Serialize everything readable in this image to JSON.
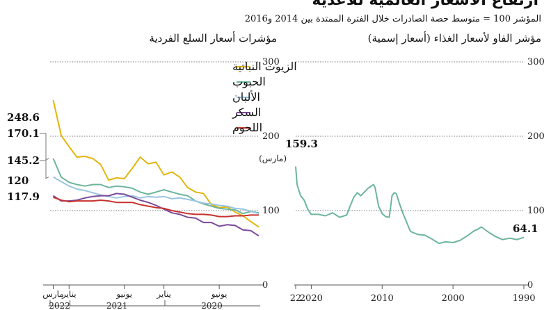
{
  "title": "ارتفاع الأسعار العالمية للأغذية",
  "subtitle": "المؤشر 100 = متوسط حصة الصادرات خلال الفترة الممتدة بين 2014 و2016",
  "chart_data": [
    {
      "type": "line",
      "title": "مؤشر الفاو لأسعار الغذاء (أسعار إسمية)",
      "ylim": [
        0,
        300
      ],
      "yticks": [
        "0",
        "100",
        "200",
        "300"
      ],
      "xlim": [
        1990,
        2022.2
      ],
      "xticks": [
        "1990",
        "2000",
        "2010",
        "2020",
        "22"
      ],
      "x": [
        1990.0,
        1991.0,
        1992.0,
        1993.0,
        1994.0,
        1995.0,
        1996.0,
        1996.5,
        1997.0,
        1998.0,
        1999.0,
        2000.0,
        2001.0,
        2002.0,
        2003.0,
        2004.0,
        2005.0,
        2006.0,
        2007.0,
        2007.5,
        2008.0,
        2008.3,
        2008.6,
        2009.0,
        2009.5,
        2010.0,
        2010.5,
        2011.0,
        2011.2,
        2012.0,
        2012.6,
        2013.0,
        2013.5,
        2014.0,
        2014.6,
        2015.0,
        2016.0,
        2017.0,
        2018.0,
        2019.0,
        2020.0,
        2020.5,
        2021.0,
        2021.5,
        2022.0,
        2022.2
      ],
      "values": [
        64,
        61,
        63,
        61,
        65,
        71,
        78,
        75,
        73,
        66,
        60,
        57,
        58,
        56,
        62,
        67,
        68,
        72,
        95,
        108,
        123,
        124,
        120,
        91,
        92,
        96,
        106,
        131,
        135,
        130,
        124,
        120,
        124,
        118,
        104,
        94,
        91,
        97,
        93,
        95,
        95,
        102,
        114,
        120,
        135,
        159.3
      ],
      "annotations": [
        {
          "text": "159.3",
          "sub": "(مارس)"
        },
        {
          "text": "64.1"
        }
      ]
    },
    {
      "type": "line",
      "title": "مؤشرات أسعار السلع الفردية",
      "ylim": [
        0,
        300
      ],
      "yticks": [
        "0",
        "100",
        "200",
        "300"
      ],
      "xlim": [
        2020.0,
        2022.2
      ],
      "xticks": [
        "يونيو",
        "يناير",
        "يونيو",
        "يناير",
        "مارس"
      ],
      "xyears": [
        "2020",
        "2021",
        "2022"
      ],
      "x": [
        2020.0,
        2020.083,
        2020.167,
        2020.25,
        2020.333,
        2020.417,
        2020.5,
        2020.583,
        2020.667,
        2020.75,
        2020.833,
        2020.917,
        2021.0,
        2021.083,
        2021.167,
        2021.25,
        2021.333,
        2021.417,
        2021.5,
        2021.583,
        2021.667,
        2021.75,
        2021.833,
        2021.917,
        2022.0,
        2022.083,
        2022.167
      ],
      "series": [
        {
          "name": "الزيوت النباتية",
          "color": "#e3b50c",
          "values": [
            78,
            85,
            93,
            98,
            105,
            104,
            108,
            123,
            125,
            131,
            145,
            152,
            148,
            165,
            163,
            172,
            157,
            143,
            144,
            141,
            162,
            170,
            173,
            172,
            186,
            201,
            248.6
          ]
        },
        {
          "name": "الحبوب",
          "color": "#6cb59a",
          "values": [
            97,
            99,
            96,
            101,
            102,
            103,
            106,
            109,
            113,
            120,
            122,
            125,
            128,
            125,
            122,
            125,
            130,
            132,
            133,
            131,
            135,
            135,
            133,
            135,
            138,
            145,
            170.1
          ]
        },
        {
          "name": "الألبان",
          "color": "#9ac4e0",
          "values": [
            96,
            99,
            102,
            103,
            106,
            107,
            109,
            110,
            113,
            115,
            117,
            116,
            119,
            118,
            119,
            117,
            120,
            119,
            117,
            119,
            121,
            124,
            127,
            129,
            133,
            139,
            145.2
          ]
        },
        {
          "name": "السكر",
          "color": "#7b4a9a",
          "values": [
            66,
            73,
            74,
            80,
            81,
            79,
            84,
            84,
            90,
            91,
            95,
            97,
            102,
            107,
            111,
            114,
            118,
            122,
            123,
            120,
            120,
            119,
            117,
            114,
            113,
            113,
            120
          ]
        },
        {
          "name": "اللحوم",
          "color": "#c7322e",
          "values": [
            94,
            94,
            93,
            93,
            92,
            92,
            94,
            95,
            95,
            96,
            98,
            100,
            103,
            104,
            106,
            108,
            111,
            111,
            111,
            113,
            114,
            113,
            113,
            113,
            112,
            114,
            117.9
          ]
        }
      ],
      "annotations": [
        "248.6",
        "170.1",
        "145.2",
        "120",
        "117.9"
      ]
    }
  ]
}
